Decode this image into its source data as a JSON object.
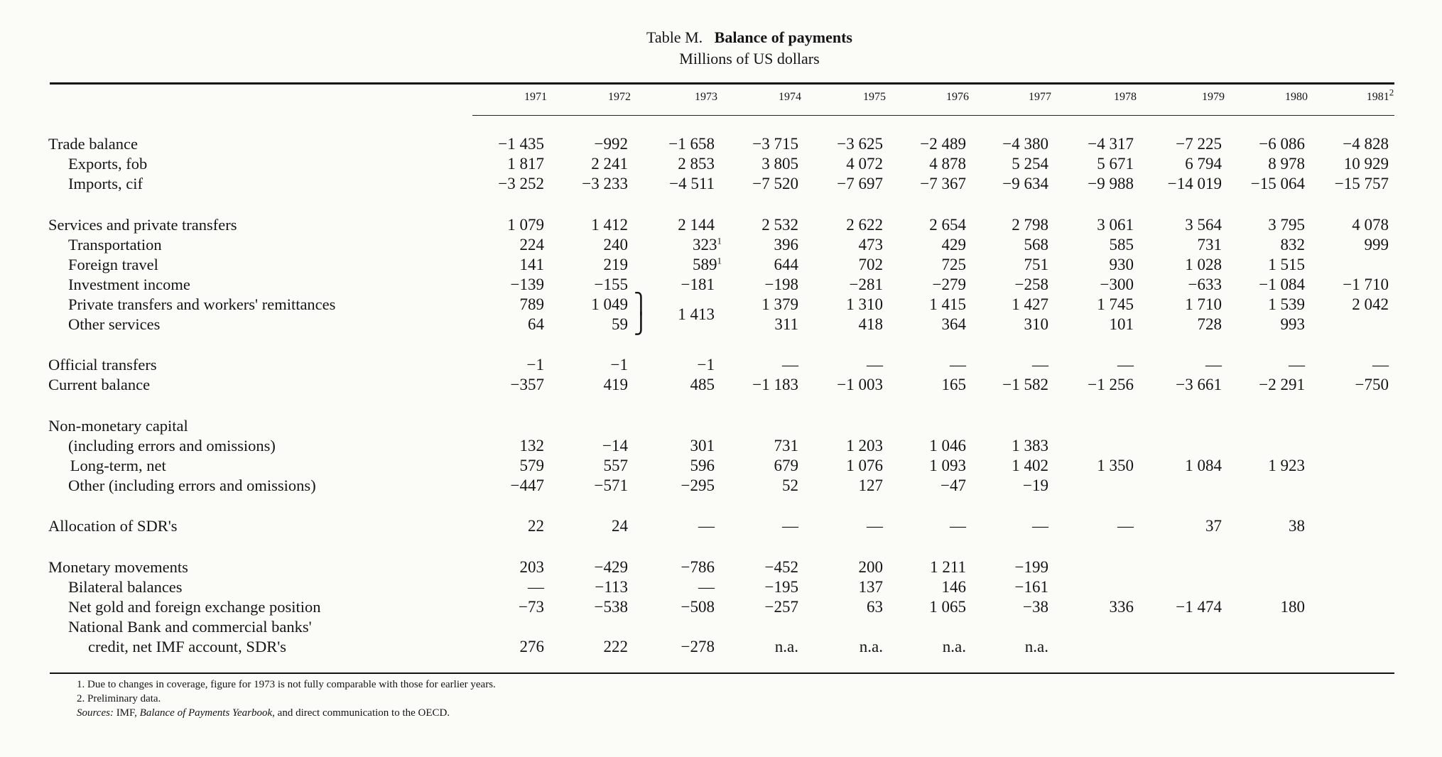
{
  "title": {
    "prefix": "Table M.",
    "main": "Balance of payments",
    "subtitle": "Millions of US dollars"
  },
  "years": [
    "1971",
    "1972",
    "1973",
    "1974",
    "1975",
    "1976",
    "1977",
    "1978",
    "1979",
    "1980",
    "1981²"
  ],
  "rows": [
    {
      "label": "Trade balance",
      "indent": 0,
      "values": [
        "−1 435",
        "−992",
        "−1 658",
        "−3 715",
        "−3 625",
        "−2 489",
        "−4 380",
        "−4 317",
        "−7 225",
        "−6 086",
        "−4 828"
      ]
    },
    {
      "label": "Exports, fob",
      "indent": 1,
      "values": [
        "1 817",
        "2 241",
        "2 853",
        "3 805",
        "4 072",
        "4 878",
        "5 254",
        "5 671",
        "6 794",
        "8 978",
        "10 929"
      ]
    },
    {
      "label": "Imports, cif",
      "indent": 1,
      "values": [
        "−3 252",
        "−3 233",
        "−4 511",
        "−7 520",
        "−7 697",
        "−7 367",
        "−9 634",
        "−9 988",
        "−14 019",
        "−15 064",
        "−15 757"
      ]
    },
    {
      "label": "Services and private transfers",
      "indent": 0,
      "values": [
        "1 079",
        "1 412",
        "2 144",
        "2 532",
        "2 622",
        "2 654",
        "2 798",
        "3 061",
        "3 564",
        "3 795",
        "4 078"
      ]
    },
    {
      "label": "Transportation",
      "indent": 1,
      "values": [
        "224",
        "240",
        "323¹",
        "396",
        "473",
        "429",
        "568",
        "585",
        "731",
        "832",
        "999"
      ]
    },
    {
      "label": "Foreign travel",
      "indent": 1,
      "values": [
        "141",
        "219",
        "589¹",
        "644",
        "702",
        "725",
        "751",
        "930",
        "1 028",
        "1 515",
        ""
      ]
    },
    {
      "label": "Investment income",
      "indent": 1,
      "values": [
        "−139",
        "−155",
        "−181",
        "−198",
        "−281",
        "−279",
        "−258",
        "−300",
        "−633",
        "−1 084",
        "−1 710"
      ]
    },
    {
      "label": "Private transfers and workers' remittances",
      "indent": 1,
      "values": [
        "789",
        "1 049",
        "",
        "1 379",
        "1 310",
        "1 415",
        "1 427",
        "1 745",
        "1 710",
        "1 539",
        "2 042"
      ]
    },
    {
      "label": "Other services",
      "indent": 1,
      "values": [
        "64",
        "59",
        "",
        "311",
        "418",
        "364",
        "310",
        "101",
        "728",
        "993",
        ""
      ]
    },
    {
      "label": "Official transfers",
      "indent": 0,
      "values": [
        "−1",
        "−1",
        "−1",
        "—",
        "—",
        "—",
        "—",
        "—",
        "—",
        "—",
        "—"
      ]
    },
    {
      "label": "Current balance",
      "indent": 0,
      "values": [
        "−357",
        "419",
        "485",
        "−1 183",
        "−1 003",
        "165",
        "−1 582",
        "−1 256",
        "−3 661",
        "−2 291",
        "−750"
      ]
    },
    {
      "label": "Non-monetary capital",
      "indent": 0,
      "values": [
        "",
        "",
        "",
        "",
        "",
        "",
        "",
        "",
        "",
        "",
        ""
      ]
    },
    {
      "label": "(including errors and omissions)",
      "indent": 1,
      "values": [
        "132",
        "−14",
        "301",
        "731",
        "1 203",
        "1 046",
        "1 383",
        "",
        "",
        "",
        ""
      ]
    },
    {
      "label": "Long-term, net",
      "indent": 1.1,
      "values": [
        "579",
        "557",
        "596",
        "679",
        "1 076",
        "1 093",
        "1 402",
        "1 350",
        "1 084",
        "1 923",
        ""
      ]
    },
    {
      "label": "Other (including errors and omissions)",
      "indent": 1,
      "values": [
        "−447",
        "−571",
        "−295",
        "52",
        "127",
        "−47",
        "−19",
        "",
        "",
        "",
        ""
      ]
    },
    {
      "label": "Allocation of SDR's",
      "indent": 0,
      "values": [
        "22",
        "24",
        "—",
        "—",
        "—",
        "—",
        "—",
        "—",
        "37",
        "38",
        ""
      ]
    },
    {
      "label": "Monetary movements",
      "indent": 0,
      "values": [
        "203",
        "−429",
        "−786",
        "−452",
        "200",
        "1 211",
        "−199",
        "",
        "",
        "",
        ""
      ]
    },
    {
      "label": "Bilateral balances",
      "indent": 1,
      "values": [
        "—",
        "−113",
        "—",
        "−195",
        "137",
        "146",
        "−161",
        "",
        "",
        "",
        ""
      ]
    },
    {
      "label": "Net gold and foreign exchange position",
      "indent": 1,
      "values": [
        "−73",
        "−538",
        "−508",
        "−257",
        "63",
        "1 065",
        "−38",
        "336",
        "−1 474",
        "180",
        ""
      ]
    },
    {
      "label": "National Bank and commercial banks'",
      "indent": 1,
      "values": [
        "",
        "",
        "",
        "",
        "",
        "",
        "",
        "",
        "",
        "",
        ""
      ]
    },
    {
      "label": "credit, net IMF account, SDR's",
      "indent": 2,
      "values": [
        "276",
        "222",
        "−278",
        "n.a.",
        "n.a.",
        "n.a.",
        "n.a.",
        "",
        "",
        "",
        ""
      ]
    }
  ],
  "merged_1973": "1 413",
  "footnotes": {
    "fn1": "1.   Due to changes in coverage, figure for 1973 is not fully comparable with those for earlier years.",
    "fn2": "2.   Preliminary data.",
    "sources_label": "Sources:",
    "sources_pre": " IMF, ",
    "sources_pub": "Balance of Payments Yearbook",
    "sources_post": ", and direct communication to the OECD."
  }
}
